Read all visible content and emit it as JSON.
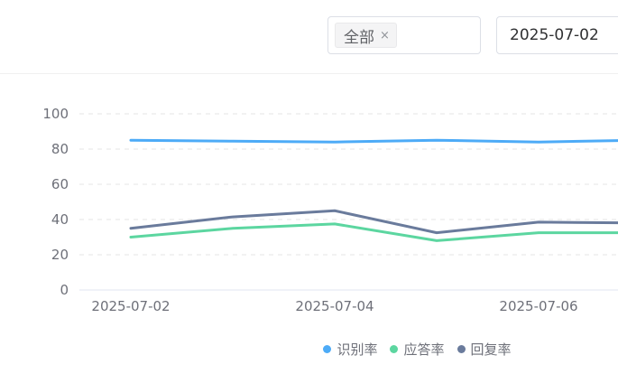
{
  "filters": {
    "tag_label": "全部",
    "tag_close": "×",
    "date_value": "2025-07-02"
  },
  "chart_data": {
    "type": "line",
    "x": [
      "2025-07-02",
      "2025-07-03",
      "2025-07-04",
      "2025-07-05",
      "2025-07-06",
      "2025-07-07"
    ],
    "x_tick_labels": [
      "2025-07-02",
      "2025-07-04",
      "2025-07-06"
    ],
    "y_ticks": [
      "0",
      "20",
      "40",
      "60",
      "80",
      "100"
    ],
    "ylim": [
      0,
      100
    ],
    "grid": true,
    "legend_position": "bottom",
    "series": [
      {
        "name": "识别率",
        "color": "#4dabf7",
        "values": [
          85,
          84.5,
          84,
          85,
          84,
          85
        ]
      },
      {
        "name": "应答率",
        "color": "#5cd6a0",
        "values": [
          30,
          35,
          37.5,
          28,
          32.5,
          32.5
        ]
      },
      {
        "name": "回复率",
        "color": "#6a7b9c",
        "values": [
          35,
          41.5,
          45,
          32.5,
          38.5,
          38
        ]
      }
    ]
  }
}
